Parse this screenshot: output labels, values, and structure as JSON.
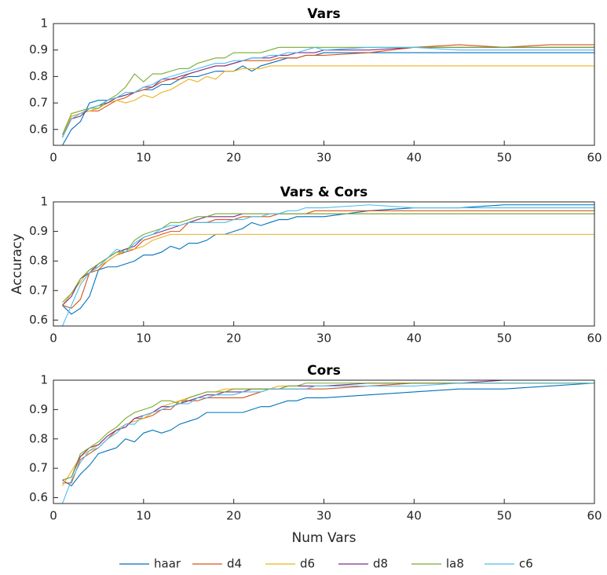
{
  "chart_data": [
    {
      "type": "line",
      "title": "Vars",
      "x": [
        1,
        2,
        3,
        4,
        5,
        6,
        7,
        8,
        9,
        10,
        11,
        12,
        13,
        14,
        15,
        16,
        17,
        18,
        19,
        20,
        21,
        22,
        23,
        24,
        25,
        26,
        27,
        28,
        29,
        30,
        35,
        40,
        45,
        50,
        55,
        60
      ],
      "xlim": [
        0,
        60
      ],
      "xticks": [
        0,
        10,
        20,
        30,
        40,
        50,
        60
      ],
      "ylim": [
        0.54,
        1
      ],
      "yticks": [
        0.6,
        0.7,
        0.8,
        0.9,
        1
      ],
      "series": [
        {
          "name": "haar",
          "color": "#0072BD",
          "values": [
            0.54,
            0.6,
            0.63,
            0.7,
            0.71,
            0.71,
            0.72,
            0.73,
            0.74,
            0.75,
            0.75,
            0.77,
            0.77,
            0.79,
            0.8,
            0.8,
            0.81,
            0.82,
            0.82,
            0.82,
            0.84,
            0.82,
            0.84,
            0.85,
            0.86,
            0.87,
            0.87,
            0.88,
            0.88,
            0.89,
            0.89,
            0.89,
            0.89,
            0.89,
            0.89,
            0.89
          ]
        },
        {
          "name": "d4",
          "color": "#D95319",
          "values": [
            0.57,
            0.65,
            0.66,
            0.67,
            0.67,
            0.69,
            0.71,
            0.72,
            0.74,
            0.75,
            0.76,
            0.78,
            0.79,
            0.79,
            0.81,
            0.82,
            0.83,
            0.84,
            0.84,
            0.85,
            0.86,
            0.86,
            0.86,
            0.86,
            0.87,
            0.87,
            0.87,
            0.88,
            0.88,
            0.88,
            0.89,
            0.91,
            0.92,
            0.91,
            0.92,
            0.92
          ]
        },
        {
          "name": "d6",
          "color": "#EDB120",
          "values": [
            0.58,
            0.65,
            0.66,
            0.67,
            0.68,
            0.7,
            0.71,
            0.7,
            0.71,
            0.73,
            0.72,
            0.74,
            0.75,
            0.77,
            0.79,
            0.78,
            0.8,
            0.79,
            0.82,
            0.82,
            0.83,
            0.83,
            0.83,
            0.84,
            0.84,
            0.84,
            0.84,
            0.84,
            0.84,
            0.84,
            0.84,
            0.84,
            0.84,
            0.84,
            0.84,
            0.84
          ]
        },
        {
          "name": "d8",
          "color": "#7E2F8E",
          "values": [
            0.57,
            0.64,
            0.65,
            0.68,
            0.69,
            0.7,
            0.72,
            0.73,
            0.74,
            0.76,
            0.76,
            0.79,
            0.79,
            0.8,
            0.81,
            0.82,
            0.83,
            0.84,
            0.84,
            0.85,
            0.86,
            0.87,
            0.87,
            0.87,
            0.88,
            0.88,
            0.89,
            0.89,
            0.89,
            0.9,
            0.9,
            0.91,
            0.91,
            0.91,
            0.91,
            0.91
          ]
        },
        {
          "name": "la8",
          "color": "#77AC30",
          "values": [
            0.58,
            0.66,
            0.67,
            0.68,
            0.68,
            0.71,
            0.73,
            0.76,
            0.81,
            0.78,
            0.81,
            0.81,
            0.82,
            0.83,
            0.83,
            0.85,
            0.86,
            0.87,
            0.87,
            0.89,
            0.89,
            0.89,
            0.89,
            0.9,
            0.91,
            0.91,
            0.91,
            0.91,
            0.91,
            0.91,
            0.91,
            0.91,
            0.91,
            0.91,
            0.91,
            0.91
          ]
        },
        {
          "name": "c6",
          "color": "#4DBEEE",
          "values": [
            0.57,
            0.64,
            0.66,
            0.68,
            0.69,
            0.71,
            0.72,
            0.74,
            0.74,
            0.76,
            0.77,
            0.79,
            0.8,
            0.81,
            0.82,
            0.83,
            0.84,
            0.85,
            0.85,
            0.86,
            0.86,
            0.87,
            0.87,
            0.88,
            0.88,
            0.89,
            0.89,
            0.9,
            0.91,
            0.9,
            0.91,
            0.91,
            0.9,
            0.9,
            0.9,
            0.9
          ]
        }
      ]
    },
    {
      "type": "line",
      "title": "Vars & Cors",
      "ylabel": "Accuracy",
      "x": [
        1,
        2,
        3,
        4,
        5,
        6,
        7,
        8,
        9,
        10,
        11,
        12,
        13,
        14,
        15,
        16,
        17,
        18,
        19,
        20,
        21,
        22,
        23,
        24,
        25,
        26,
        27,
        28,
        29,
        30,
        35,
        40,
        45,
        50,
        55,
        60
      ],
      "xlim": [
        0,
        60
      ],
      "xticks": [
        0,
        10,
        20,
        30,
        40,
        50,
        60
      ],
      "ylim": [
        0.58,
        1
      ],
      "yticks": [
        0.6,
        0.7,
        0.8,
        0.9,
        1
      ],
      "series": [
        {
          "name": "haar",
          "color": "#0072BD",
          "values": [
            0.65,
            0.62,
            0.64,
            0.68,
            0.77,
            0.78,
            0.78,
            0.79,
            0.8,
            0.82,
            0.82,
            0.83,
            0.85,
            0.84,
            0.86,
            0.86,
            0.87,
            0.89,
            0.89,
            0.9,
            0.91,
            0.93,
            0.92,
            0.93,
            0.94,
            0.94,
            0.95,
            0.95,
            0.95,
            0.95,
            0.97,
            0.98,
            0.98,
            0.99,
            0.99,
            0.99
          ]
        },
        {
          "name": "d4",
          "color": "#D95319",
          "values": [
            0.65,
            0.64,
            0.67,
            0.76,
            0.77,
            0.8,
            0.82,
            0.83,
            0.84,
            0.87,
            0.88,
            0.89,
            0.9,
            0.9,
            0.93,
            0.93,
            0.93,
            0.94,
            0.94,
            0.94,
            0.95,
            0.95,
            0.95,
            0.95,
            0.96,
            0.96,
            0.96,
            0.96,
            0.97,
            0.97,
            0.97,
            0.97,
            0.97,
            0.97,
            0.97,
            0.97
          ]
        },
        {
          "name": "d6",
          "color": "#EDB120",
          "values": [
            0.65,
            0.69,
            0.73,
            0.77,
            0.78,
            0.8,
            0.82,
            0.84,
            0.84,
            0.85,
            0.87,
            0.88,
            0.89,
            0.89,
            0.89,
            0.89,
            0.89,
            0.89,
            0.89,
            0.89,
            0.89,
            0.89,
            0.89,
            0.89,
            0.89,
            0.89,
            0.89,
            0.89,
            0.89,
            0.89,
            0.89,
            0.89,
            0.89,
            0.89,
            0.89,
            0.89
          ]
        },
        {
          "name": "d8",
          "color": "#7E2F8E",
          "values": [
            0.65,
            0.68,
            0.74,
            0.76,
            0.79,
            0.81,
            0.83,
            0.84,
            0.85,
            0.88,
            0.89,
            0.9,
            0.91,
            0.92,
            0.93,
            0.94,
            0.95,
            0.95,
            0.95,
            0.95,
            0.96,
            0.96,
            0.96,
            0.96,
            0.96,
            0.96,
            0.96,
            0.96,
            0.96,
            0.96,
            0.96,
            0.96,
            0.96,
            0.96,
            0.96,
            0.96
          ]
        },
        {
          "name": "la8",
          "color": "#77AC30",
          "values": [
            0.66,
            0.69,
            0.74,
            0.77,
            0.79,
            0.81,
            0.83,
            0.83,
            0.87,
            0.89,
            0.9,
            0.91,
            0.93,
            0.93,
            0.94,
            0.95,
            0.95,
            0.96,
            0.96,
            0.96,
            0.96,
            0.96,
            0.96,
            0.96,
            0.96,
            0.96,
            0.96,
            0.96,
            0.96,
            0.96,
            0.96,
            0.96,
            0.96,
            0.96,
            0.96,
            0.96
          ]
        },
        {
          "name": "c6",
          "color": "#4DBEEE",
          "values": [
            0.58,
            0.65,
            0.72,
            0.76,
            0.78,
            0.81,
            0.84,
            0.83,
            0.86,
            0.88,
            0.89,
            0.91,
            0.92,
            0.92,
            0.93,
            0.93,
            0.93,
            0.93,
            0.93,
            0.94,
            0.94,
            0.95,
            0.95,
            0.96,
            0.96,
            0.97,
            0.97,
            0.98,
            0.98,
            0.98,
            0.99,
            0.98,
            0.98,
            0.98,
            0.98,
            0.98
          ]
        }
      ]
    },
    {
      "type": "line",
      "title": "Cors",
      "xlabel": "Num Vars",
      "legend": "bottom",
      "x": [
        1,
        2,
        3,
        4,
        5,
        6,
        7,
        8,
        9,
        10,
        11,
        12,
        13,
        14,
        15,
        16,
        17,
        18,
        19,
        20,
        21,
        22,
        23,
        24,
        25,
        26,
        27,
        28,
        29,
        30,
        35,
        40,
        45,
        50,
        55,
        60
      ],
      "xlim": [
        0,
        60
      ],
      "xticks": [
        0,
        10,
        20,
        30,
        40,
        50,
        60
      ],
      "ylim": [
        0.58,
        1
      ],
      "yticks": [
        0.6,
        0.7,
        0.8,
        0.9,
        1
      ],
      "series": [
        {
          "name": "haar",
          "color": "#0072BD",
          "values": [
            0.66,
            0.64,
            0.68,
            0.71,
            0.75,
            0.76,
            0.77,
            0.8,
            0.79,
            0.82,
            0.83,
            0.82,
            0.83,
            0.85,
            0.86,
            0.87,
            0.89,
            0.89,
            0.89,
            0.89,
            0.89,
            0.9,
            0.91,
            0.91,
            0.92,
            0.93,
            0.93,
            0.94,
            0.94,
            0.94,
            0.95,
            0.96,
            0.97,
            0.97,
            0.98,
            0.99
          ]
        },
        {
          "name": "d4",
          "color": "#D95319",
          "values": [
            0.65,
            0.65,
            0.73,
            0.75,
            0.77,
            0.8,
            0.83,
            0.84,
            0.87,
            0.87,
            0.88,
            0.9,
            0.9,
            0.93,
            0.93,
            0.93,
            0.94,
            0.94,
            0.94,
            0.94,
            0.94,
            0.95,
            0.96,
            0.97,
            0.97,
            0.97,
            0.97,
            0.97,
            0.97,
            0.97,
            0.98,
            0.99,
            0.99,
            0.99,
            0.99,
            0.99
          ]
        },
        {
          "name": "d6",
          "color": "#EDB120",
          "values": [
            0.64,
            0.69,
            0.74,
            0.76,
            0.78,
            0.81,
            0.83,
            0.85,
            0.86,
            0.87,
            0.89,
            0.91,
            0.92,
            0.93,
            0.94,
            0.95,
            0.96,
            0.96,
            0.97,
            0.97,
            0.97,
            0.97,
            0.97,
            0.97,
            0.98,
            0.98,
            0.98,
            0.98,
            0.98,
            0.98,
            0.99,
            0.99,
            0.99,
            0.99,
            0.99,
            0.99
          ]
        },
        {
          "name": "d8",
          "color": "#7E2F8E",
          "values": [
            0.66,
            0.67,
            0.74,
            0.77,
            0.78,
            0.81,
            0.83,
            0.84,
            0.87,
            0.88,
            0.89,
            0.91,
            0.91,
            0.92,
            0.93,
            0.94,
            0.95,
            0.95,
            0.96,
            0.96,
            0.96,
            0.97,
            0.97,
            0.97,
            0.97,
            0.98,
            0.98,
            0.98,
            0.98,
            0.98,
            0.99,
            0.99,
            0.99,
            1,
            1,
            1
          ]
        },
        {
          "name": "la8",
          "color": "#77AC30",
          "values": [
            0.66,
            0.67,
            0.75,
            0.77,
            0.79,
            0.82,
            0.84,
            0.87,
            0.89,
            0.9,
            0.91,
            0.93,
            0.93,
            0.92,
            0.94,
            0.95,
            0.96,
            0.96,
            0.96,
            0.97,
            0.97,
            0.97,
            0.97,
            0.97,
            0.97,
            0.98,
            0.98,
            0.99,
            0.99,
            0.99,
            0.99,
            0.99,
            0.99,
            0.99,
            0.99,
            0.99
          ]
        },
        {
          "name": "c6",
          "color": "#4DBEEE",
          "values": [
            0.58,
            0.66,
            0.72,
            0.76,
            0.77,
            0.8,
            0.82,
            0.85,
            0.85,
            0.88,
            0.89,
            0.9,
            0.91,
            0.92,
            0.92,
            0.94,
            0.94,
            0.95,
            0.95,
            0.95,
            0.96,
            0.96,
            0.96,
            0.97,
            0.97,
            0.97,
            0.97,
            0.97,
            0.98,
            0.98,
            0.98,
            0.98,
            0.99,
            0.99,
            0.99,
            0.99
          ]
        }
      ]
    }
  ]
}
